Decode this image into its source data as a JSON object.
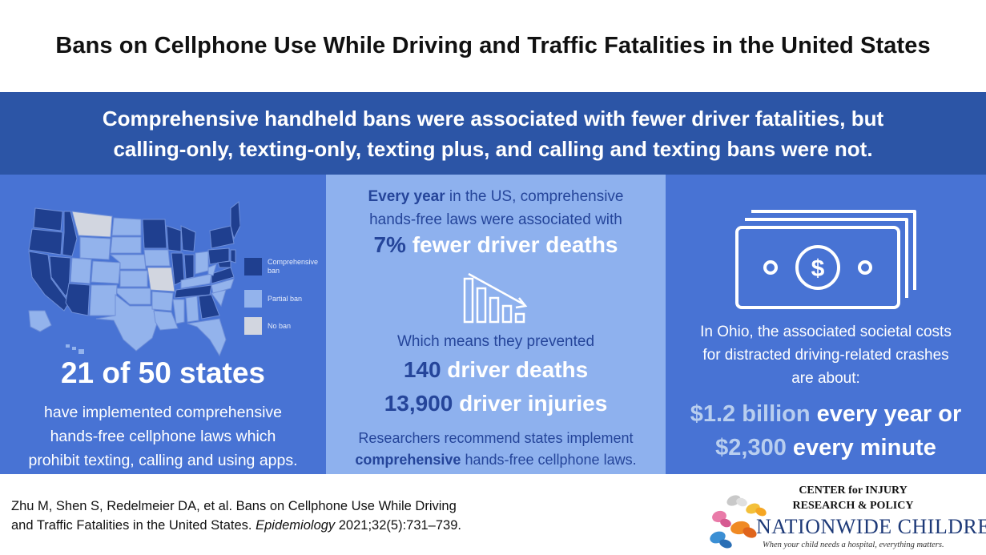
{
  "title": "Bans on Cellphone Use While Driving and Traffic Fatalities in the United States",
  "headline": {
    "line1": "Comprehensive handheld bans were associated with fewer driver fatalities, but",
    "line2": "calling-only, texting-only, texting plus, and calling and texting bans were not."
  },
  "left": {
    "legend": [
      {
        "label": "Comprehensive ban",
        "color": "#1f3f8f"
      },
      {
        "label": "Partial ban",
        "color": "#93b3ec"
      },
      {
        "label": "No ban",
        "color": "#d2d6e0"
      }
    ],
    "stat": "21 of 50 states",
    "desc_lines": [
      "have implemented comprehensive",
      "hands-free cellphone laws which",
      "prohibit texting, calling and using apps."
    ]
  },
  "middle": {
    "intro_bold": "Every year",
    "intro_rest": " in the US, comprehensive",
    "intro_line2": "hands-free laws were associated with",
    "stat_num": "7%",
    "stat_rest": " fewer driver deaths",
    "chart_icon": "declining-bar-chart-icon",
    "prevented": "Which means they prevented",
    "deaths_num": "140",
    "deaths_rest": " driver deaths",
    "injuries_num": "13,900",
    "injuries_rest": " driver injuries",
    "rec_line1": "Researchers recommend states implement",
    "rec_bold": "comprehensive",
    "rec_rest": " hands-free cellphone laws."
  },
  "right": {
    "money_icon": "money-bill-icon",
    "desc_lines": [
      "In Ohio, the associated societal costs",
      "for distracted driving-related crashes",
      "are about:"
    ],
    "cost1_value": "$1.2 billion",
    "cost1_rest": " every year or",
    "cost2_value": "$2,300",
    "cost2_rest": " every minute"
  },
  "citation": {
    "line1": "Zhu M, Shen S, Redelmeier DA, et al. Bans on Cellphone Use While Driving",
    "line2_start": "and Traffic Fatalities in the United States. ",
    "journal": "Epidemiology",
    "line2_end": " 2021;32(5):731–739."
  },
  "logo": {
    "line1": "CENTER for INJURY",
    "line2": "RESEARCH & POLICY",
    "name": "NATIONWIDE CHILDREN'S",
    "tagline": "When your child needs a hospital, everything matters."
  },
  "colors": {
    "header_band": "#2c55a6",
    "panel_dark": "#4873d4",
    "panel_light": "#8eb1ee",
    "accent_text": "#25459a"
  }
}
